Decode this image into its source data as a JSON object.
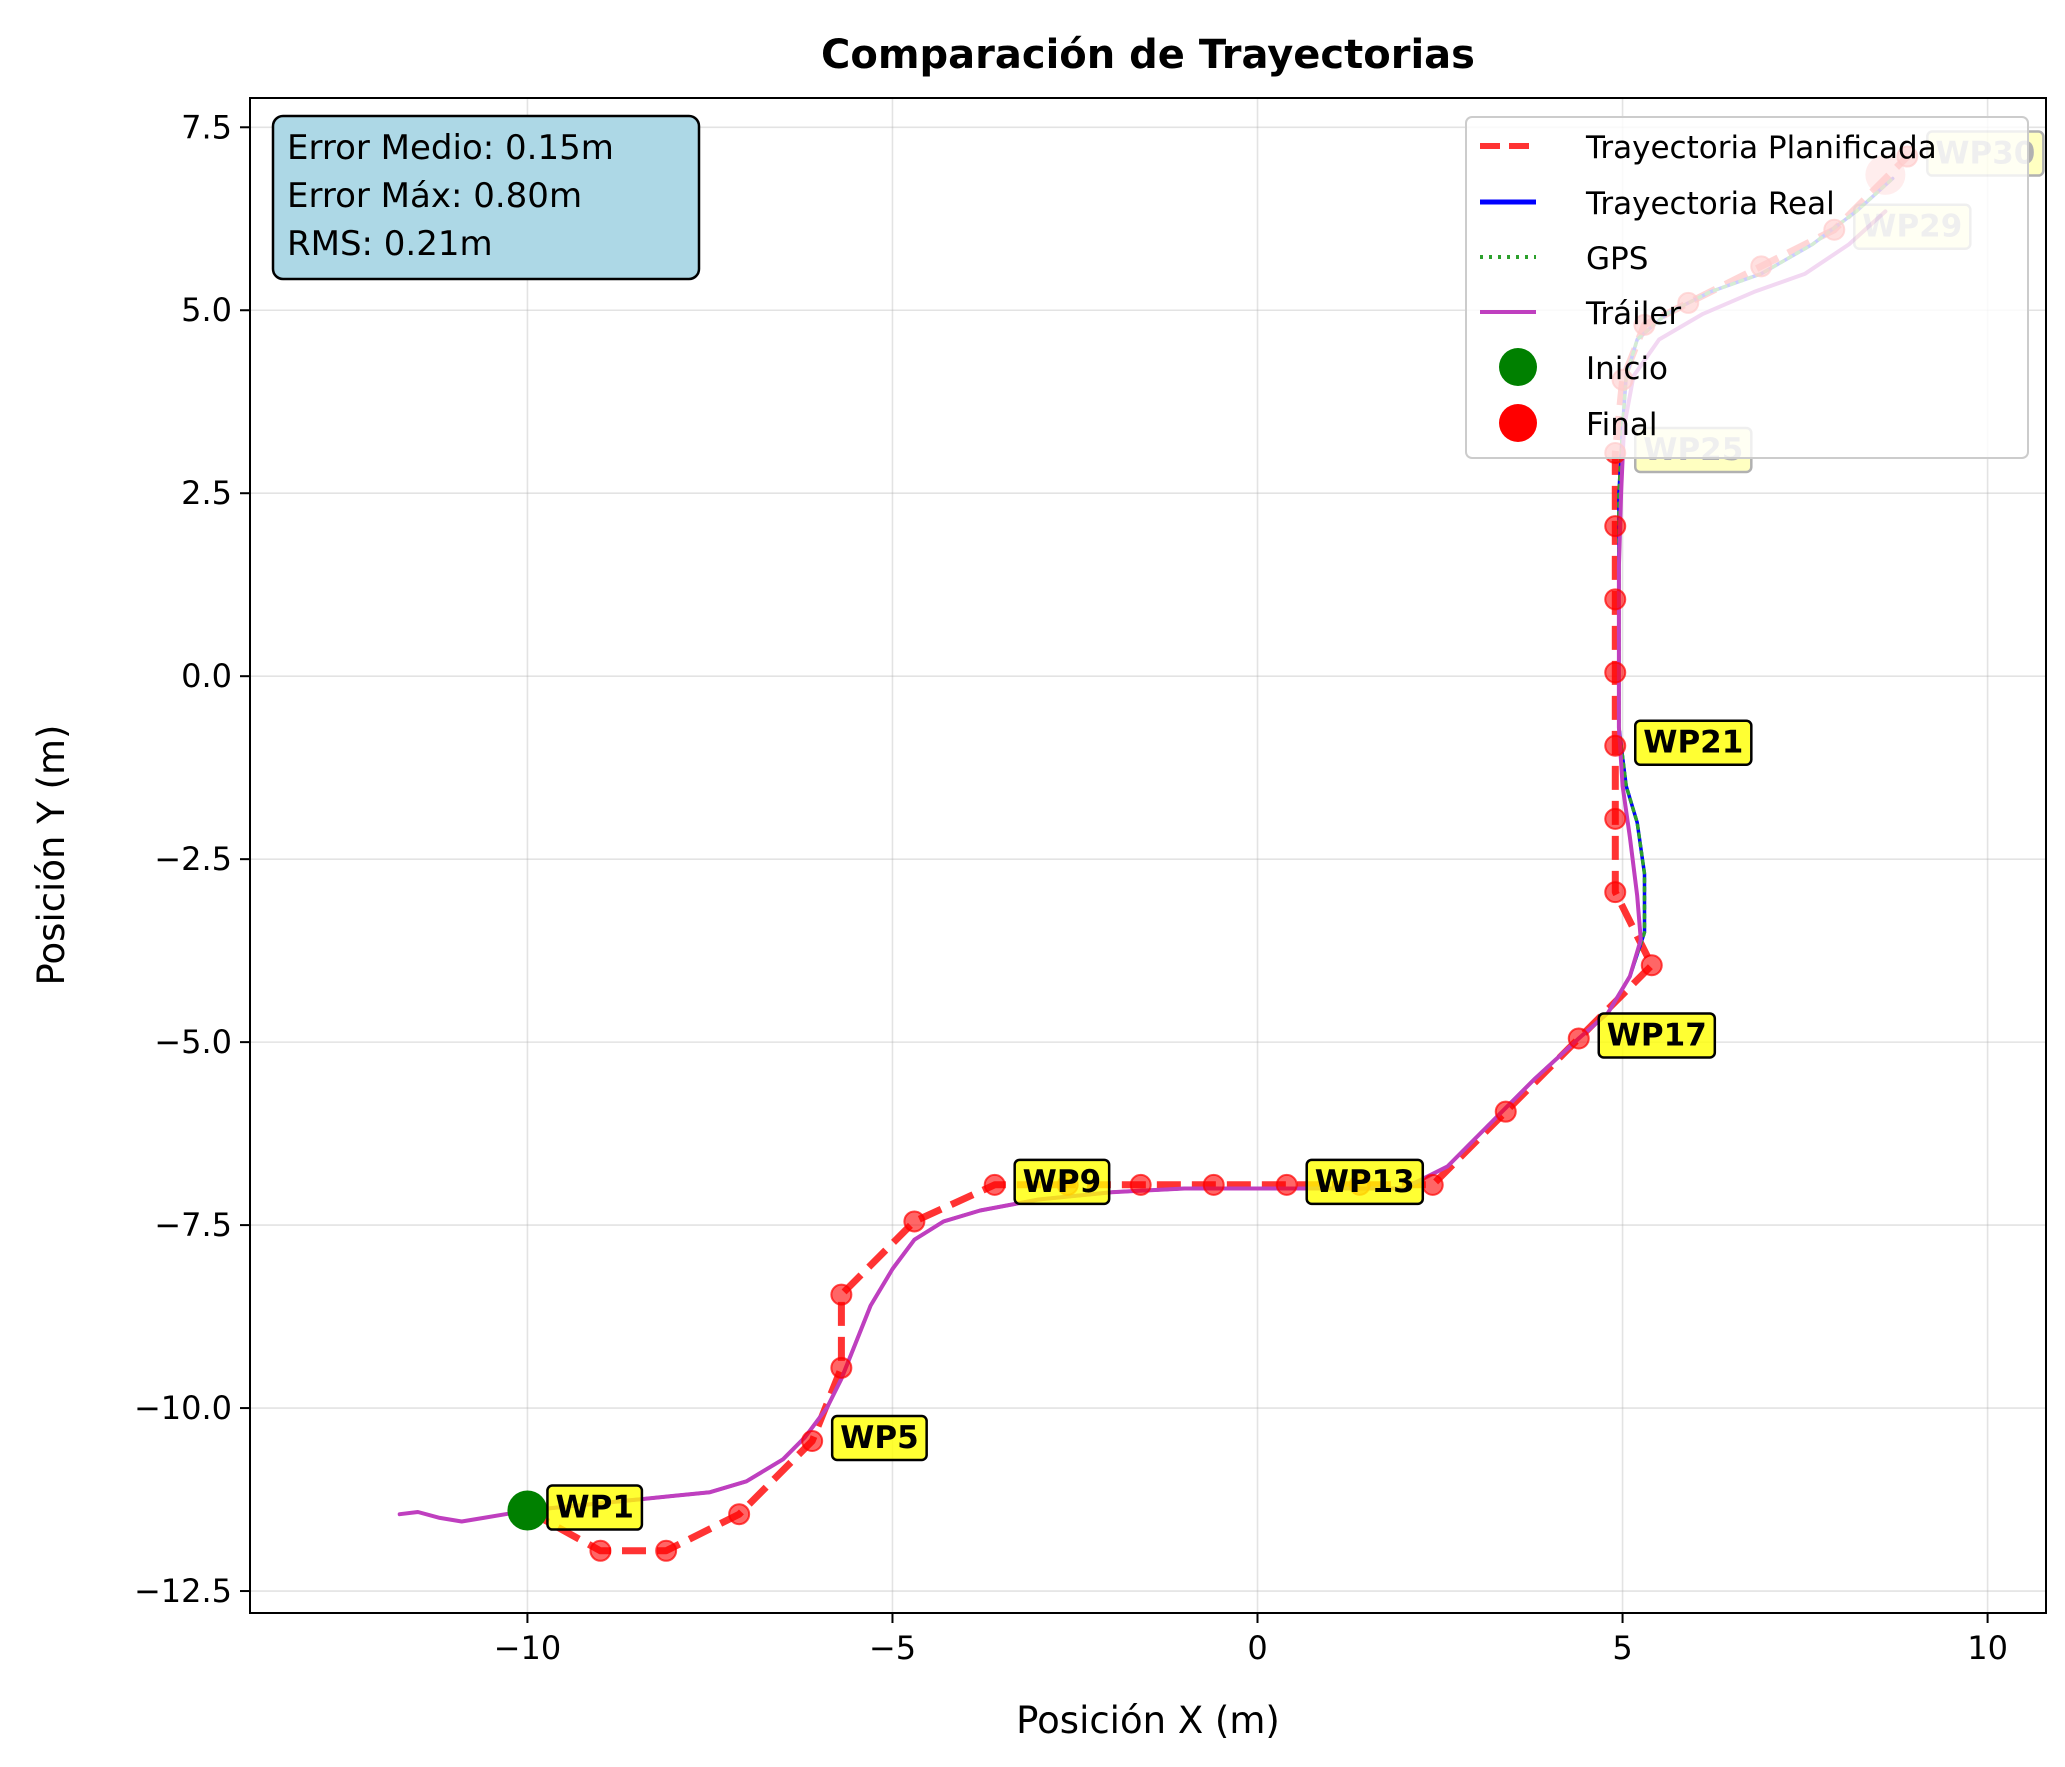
{
  "chart_data": {
    "type": "line",
    "title": "Comparación de Trayectorias",
    "xlabel": "Posición X (m)",
    "ylabel": "Posición Y (m)",
    "xlim": [
      -13.8,
      10.8
    ],
    "ylim": [
      -12.8,
      7.9
    ],
    "xticks": [
      -10,
      -5,
      0,
      5,
      10
    ],
    "xtick_labels": [
      "−10",
      "−5",
      "0",
      "5",
      "10"
    ],
    "yticks": [
      -12.5,
      -10,
      -7.5,
      -5,
      -2.5,
      0,
      2.5,
      5,
      7.5
    ],
    "ytick_labels": [
      "−12.5",
      "−10.0",
      "−7.5",
      "−5.0",
      "−2.5",
      "0.0",
      "2.5",
      "5.0",
      "7.5"
    ],
    "grid": true,
    "legend_position": "top-right",
    "stats": [
      "Error Medio: 0.15m",
      "Error Máx: 0.80m",
      "RMS: 0.21m"
    ],
    "series": [
      {
        "name": "Trayectoria Planificada",
        "color": "#ff0000",
        "style": "dashed",
        "markers": true,
        "x": [
          -10.0,
          -9.0,
          -8.1,
          -7.1,
          -6.1,
          -5.7,
          -5.7,
          -4.7,
          -3.6,
          -2.6,
          -1.6,
          -0.6,
          0.4,
          1.4,
          2.4,
          3.4,
          4.4,
          5.4,
          4.9,
          4.9,
          4.9,
          4.9,
          4.9,
          4.9,
          4.9,
          5.0,
          5.3,
          5.9,
          6.9,
          7.9,
          8.9
        ],
        "y": [
          -11.4,
          -11.95,
          -11.95,
          -11.45,
          -10.45,
          -9.45,
          -8.45,
          -7.45,
          -6.95,
          -6.95,
          -6.95,
          -6.95,
          -6.95,
          -6.95,
          -6.95,
          -5.95,
          -4.95,
          -3.95,
          -2.95,
          -1.95,
          -0.95,
          0.05,
          1.05,
          2.05,
          3.05,
          4.05,
          4.8,
          5.1,
          5.6,
          6.1,
          7.1
        ]
      },
      {
        "name": "Trayectoria Real",
        "color": "#0000ff",
        "style": "solid",
        "x": [
          -10.0,
          -9.5,
          -9.0,
          -8.5,
          -8.0,
          -7.5,
          -7.0,
          -6.5,
          -6.2,
          -5.9,
          -5.7,
          -5.5,
          -5.3,
          -5.0,
          -4.7,
          -4.3,
          -3.8,
          -3.0,
          -2.0,
          -1.0,
          0.0,
          1.0,
          2.0,
          2.6,
          3.2,
          3.8,
          4.4,
          4.8,
          5.1,
          5.3,
          5.3,
          5.2,
          5.05,
          4.95,
          4.95,
          4.95,
          4.95,
          5.0,
          5.05,
          5.2,
          5.6,
          6.2,
          6.9,
          7.6,
          8.2,
          8.7
        ],
        "y": [
          -11.4,
          -11.35,
          -11.3,
          -11.25,
          -11.2,
          -11.15,
          -11.0,
          -10.7,
          -10.4,
          -10.0,
          -9.6,
          -9.1,
          -8.6,
          -8.1,
          -7.7,
          -7.45,
          -7.3,
          -7.15,
          -7.05,
          -7.0,
          -7.0,
          -7.0,
          -7.0,
          -6.7,
          -6.1,
          -5.5,
          -4.95,
          -4.6,
          -4.1,
          -3.5,
          -2.7,
          -2.0,
          -1.5,
          -0.7,
          0.5,
          1.5,
          2.5,
          3.4,
          4.1,
          4.6,
          4.95,
          5.25,
          5.5,
          5.9,
          6.35,
          6.8
        ]
      },
      {
        "name": "GPS",
        "color": "#2ca02c",
        "style": "dotted",
        "x": [
          -10.0,
          -9.5,
          -9.0,
          -8.5,
          -8.0,
          -7.5,
          -7.0,
          -6.5,
          -6.2,
          -5.9,
          -5.7,
          -5.5,
          -5.3,
          -5.0,
          -4.7,
          -4.3,
          -3.8,
          -3.0,
          -2.0,
          -1.0,
          0.0,
          1.0,
          2.0,
          2.6,
          3.2,
          3.8,
          4.4,
          4.8,
          5.1,
          5.3,
          5.3,
          5.2,
          5.05,
          4.95,
          4.95,
          4.95,
          4.95,
          5.0,
          5.05,
          5.2,
          5.6,
          6.2,
          6.9,
          7.6,
          8.2,
          8.7
        ],
        "y": [
          -11.4,
          -11.35,
          -11.3,
          -11.25,
          -11.2,
          -11.15,
          -11.0,
          -10.7,
          -10.4,
          -10.0,
          -9.6,
          -9.1,
          -8.6,
          -8.1,
          -7.7,
          -7.45,
          -7.3,
          -7.15,
          -7.05,
          -7.0,
          -7.0,
          -7.0,
          -7.0,
          -6.7,
          -6.1,
          -5.5,
          -4.95,
          -4.6,
          -4.1,
          -3.5,
          -2.7,
          -2.0,
          -1.5,
          -0.7,
          0.5,
          1.5,
          2.5,
          3.4,
          4.1,
          4.6,
          4.95,
          5.25,
          5.5,
          5.9,
          6.35,
          6.8
        ]
      },
      {
        "name": "Tráiler",
        "color": "#bf3fbf",
        "style": "solid",
        "x": [
          -11.75,
          -11.5,
          -11.2,
          -10.9,
          -10.6,
          -10.3,
          -10.0,
          -9.5,
          -9.0,
          -8.5,
          -8.0,
          -7.5,
          -7.0,
          -6.5,
          -6.2,
          -5.9,
          -5.7,
          -5.5,
          -5.3,
          -5.0,
          -4.7,
          -4.3,
          -3.8,
          -3.0,
          -2.0,
          -1.0,
          0.0,
          1.0,
          2.0,
          2.6,
          3.2,
          3.8,
          4.4,
          4.8,
          5.1,
          5.25,
          5.2,
          5.1,
          5.0,
          4.95,
          4.95,
          4.95,
          4.98,
          5.02,
          5.15,
          5.5,
          6.1,
          6.8,
          7.5,
          8.1,
          8.6
        ],
        "y": [
          -11.45,
          -11.42,
          -11.5,
          -11.55,
          -11.5,
          -11.45,
          -11.4,
          -11.35,
          -11.3,
          -11.25,
          -11.2,
          -11.15,
          -11.0,
          -10.7,
          -10.4,
          -10.0,
          -9.6,
          -9.1,
          -8.6,
          -8.1,
          -7.7,
          -7.45,
          -7.3,
          -7.15,
          -7.05,
          -7.0,
          -7.0,
          -7.0,
          -7.0,
          -6.7,
          -6.1,
          -5.5,
          -4.95,
          -4.6,
          -4.1,
          -3.6,
          -3.0,
          -2.2,
          -1.5,
          -0.7,
          0.5,
          1.5,
          2.5,
          3.4,
          4.1,
          4.6,
          4.95,
          5.25,
          5.5,
          5.9,
          6.35
        ]
      }
    ],
    "start": {
      "name": "Inicio",
      "x": -10.0,
      "y": -11.4,
      "color": "#008000"
    },
    "end": {
      "name": "Final",
      "x": 8.6,
      "y": 6.85,
      "color": "#ff0000"
    },
    "waypoint_labels": [
      {
        "text": "WP1",
        "x": -10.0,
        "y": -11.4,
        "faded": false
      },
      {
        "text": "WP5",
        "x": -6.1,
        "y": -10.45,
        "faded": false
      },
      {
        "text": "WP9",
        "x": -3.6,
        "y": -6.95,
        "faded": false
      },
      {
        "text": "WP13",
        "x": 0.4,
        "y": -6.95,
        "faded": false
      },
      {
        "text": "WP17",
        "x": 4.4,
        "y": -4.95,
        "faded": false
      },
      {
        "text": "WP21",
        "x": 4.9,
        "y": -0.95,
        "faded": false
      },
      {
        "text": "WP25",
        "x": 4.9,
        "y": 3.05,
        "faded": true
      },
      {
        "text": "WP29",
        "x": 7.9,
        "y": 6.1,
        "faded": true
      },
      {
        "text": "WP30",
        "x": 8.9,
        "y": 7.1,
        "faded": true
      }
    ]
  }
}
